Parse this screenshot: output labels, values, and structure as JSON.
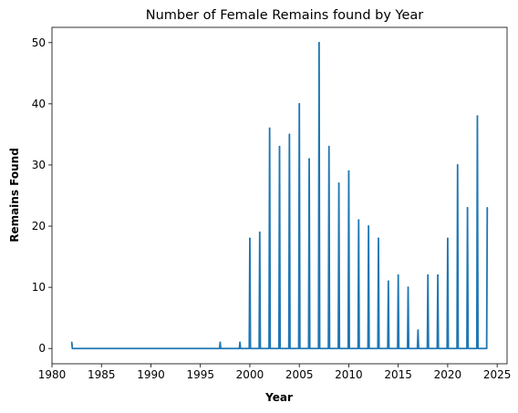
{
  "chart_data": {
    "type": "line",
    "title": "Number of Female Remains found by Year",
    "xlabel": "Year",
    "ylabel": "Remains Found",
    "xlim": [
      1980,
      2026
    ],
    "ylim": [
      -2.5,
      52.5
    ],
    "xticks": [
      1980,
      1985,
      1990,
      1995,
      2000,
      2005,
      2010,
      2015,
      2020,
      2025
    ],
    "yticks": [
      0,
      10,
      20,
      30,
      40,
      50
    ],
    "grid": false,
    "series": [
      {
        "color": "#1f77b4",
        "points": [
          {
            "year": 1982,
            "count": 1
          },
          {
            "year": 1997,
            "count": 1
          },
          {
            "year": 1999,
            "count": 1
          },
          {
            "year": 2000,
            "count": 18
          },
          {
            "year": 2001,
            "count": 19
          },
          {
            "year": 2002,
            "count": 36
          },
          {
            "year": 2003,
            "count": 33
          },
          {
            "year": 2004,
            "count": 35
          },
          {
            "year": 2005,
            "count": 40
          },
          {
            "year": 2006,
            "count": 31
          },
          {
            "year": 2007,
            "count": 50
          },
          {
            "year": 2008,
            "count": 33
          },
          {
            "year": 2009,
            "count": 27
          },
          {
            "year": 2010,
            "count": 29
          },
          {
            "year": 2011,
            "count": 21
          },
          {
            "year": 2012,
            "count": 20
          },
          {
            "year": 2013,
            "count": 18
          },
          {
            "year": 2014,
            "count": 11
          },
          {
            "year": 2015,
            "count": 12
          },
          {
            "year": 2016,
            "count": 10
          },
          {
            "year": 2017,
            "count": 3
          },
          {
            "year": 2018,
            "count": 12
          },
          {
            "year": 2019,
            "count": 12
          },
          {
            "year": 2020,
            "count": 18
          },
          {
            "year": 2021,
            "count": 30
          },
          {
            "year": 2022,
            "count": 23
          },
          {
            "year": 2023,
            "count": 38
          },
          {
            "year": 2024,
            "count": 23
          }
        ]
      }
    ]
  }
}
